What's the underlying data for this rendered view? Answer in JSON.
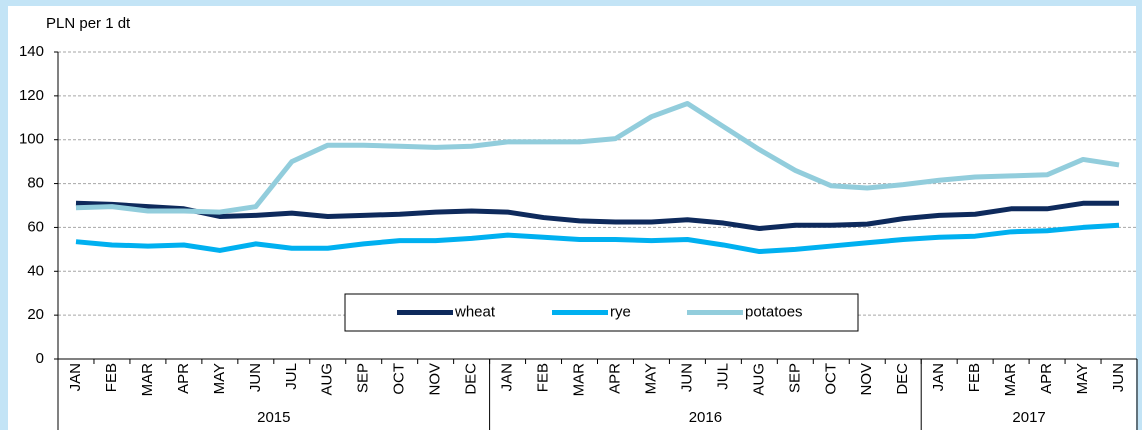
{
  "chart_data": {
    "type": "line",
    "y_axis_label": "PLN per 1 dt",
    "categories": [
      "JAN",
      "FEB",
      "MAR",
      "APR",
      "MAY",
      "JUN",
      "JUL",
      "AUG",
      "SEP",
      "OCT",
      "NOV",
      "DEC",
      "JAN",
      "FEB",
      "MAR",
      "APR",
      "MAY",
      "JUN",
      "JUL",
      "AUG",
      "SEP",
      "OCT",
      "NOV",
      "DEC",
      "JAN",
      "FEB",
      "MAR",
      "APR",
      "MAY",
      "JUN"
    ],
    "year_groups": [
      {
        "label": "2015",
        "months": 12
      },
      {
        "label": "2016",
        "months": 12
      },
      {
        "label": "2017",
        "months": 6
      }
    ],
    "series": [
      {
        "name": "wheat",
        "color": "#0e2a5c",
        "values": [
          71,
          70.5,
          69.5,
          68.5,
          65,
          65.5,
          66.5,
          65,
          65.5,
          66,
          67,
          67.5,
          67,
          64.5,
          63,
          62.5,
          62.5,
          63.5,
          62,
          59.5,
          61,
          61,
          61.5,
          64,
          65.5,
          66,
          68.5,
          68.5,
          71,
          71
        ]
      },
      {
        "name": "rye",
        "color": "#00b0f0",
        "values": [
          53.5,
          52,
          51.5,
          52,
          49.5,
          52.5,
          50.5,
          50.5,
          52.5,
          54,
          54,
          55,
          56.5,
          55.5,
          54.5,
          54.5,
          54,
          54.5,
          52,
          49,
          50,
          51.5,
          53,
          54.5,
          55.5,
          56,
          58,
          58.5,
          60,
          61
        ]
      },
      {
        "name": "potatoes",
        "color": "#92cddc",
        "values": [
          69,
          69.5,
          67.5,
          67.5,
          67,
          69.5,
          90,
          97.5,
          97.5,
          97,
          96.5,
          97,
          99,
          99,
          99,
          100.5,
          110.5,
          116.5,
          106,
          95.5,
          86,
          79,
          78,
          79.5,
          81.5,
          83,
          83.5,
          84,
          91,
          88.5
        ]
      }
    ],
    "ylim": [
      0,
      140
    ],
    "yticks": [
      0,
      20,
      40,
      60,
      80,
      100,
      120,
      140
    ],
    "grid": true,
    "legend": "bottom"
  }
}
